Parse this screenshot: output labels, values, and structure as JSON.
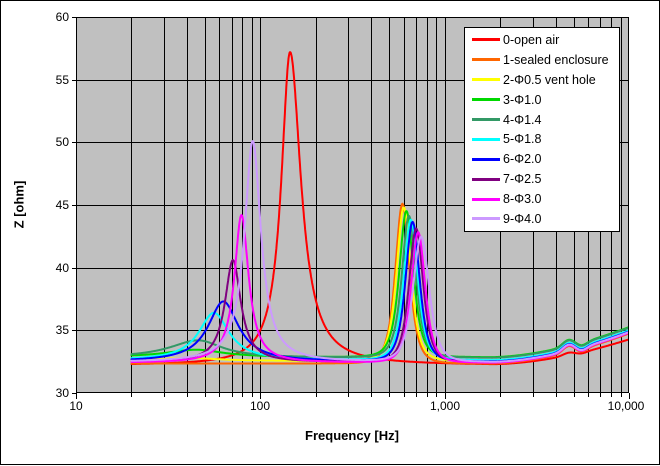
{
  "chart_data": {
    "type": "line",
    "title": "",
    "x_axis": {
      "label": "Frequency [Hz]",
      "scale": "log",
      "min": 10,
      "max": 10000,
      "decades": [
        10,
        100,
        1000,
        10000
      ],
      "tick_labels": [
        "10",
        "100",
        "1,000",
        "10,000"
      ]
    },
    "y_axis": {
      "label": "Z [ohm]",
      "min": 30,
      "max": 60,
      "step": 5,
      "tick_labels": [
        "60",
        "55",
        "50",
        "45",
        "40",
        "35",
        "30"
      ]
    },
    "plot_background": "#c0c0c0",
    "gridline_color": "#000000",
    "legend_position": "top-right-inside",
    "curve_model_note": "curves sampled 20-10000 Hz; peaks = {f Hz, z ohm peak, wl/wr log-widths, p shape power}",
    "f_start": 20,
    "f_end": 10000,
    "hf_tail": {
      "start_f": 1800,
      "rise": 2.4,
      "exp": 1.7,
      "bump_logf": 3.672,
      "bump_h": 0.5,
      "bump_w": 0.045,
      "dip_logf": 3.745,
      "dip_h": -0.25,
      "dip_w": 0.04,
      "end_z_bundle": 34.9
    },
    "series": [
      {
        "name": "0-open air",
        "color": "#FF0000",
        "base": 32.2,
        "tail_scale": 0.85,
        "bump_scale": 0.4,
        "peaks": [
          {
            "f": 145,
            "z": 57.2,
            "wl": 0.0575,
            "wr": 0.0716,
            "p": 1
          }
        ]
      },
      {
        "name": "1-sealed enclosure",
        "color": "#FF6600",
        "base": 32.35,
        "tail_scale": 1,
        "bump_scale": 1,
        "peaks": [
          {
            "f": 590,
            "z": 45.1,
            "wl": 0.07,
            "wr": 0.07,
            "p": 2
          }
        ]
      },
      {
        "name": "2-Φ0.5 vent hole",
        "color": "#FFFF00",
        "base": 32.55,
        "tail_scale": 1,
        "bump_scale": 1,
        "peaks": [
          {
            "f": 40,
            "z": 32.8,
            "wl": 0.2,
            "wr": 0.2,
            "p": 1
          },
          {
            "f": 600,
            "z": 44.8,
            "wl": 0.07,
            "wr": 0.07,
            "p": 2
          }
        ]
      },
      {
        "name": "3-Φ1.0",
        "color": "#00D800",
        "base": 32.85,
        "tail_scale": 1,
        "bump_scale": 1,
        "peaks": [
          {
            "f": 45,
            "z": 33.45,
            "wl": 0.2,
            "wr": 0.18,
            "p": 1
          },
          {
            "f": 620,
            "z": 44.5,
            "wl": 0.07,
            "wr": 0.07,
            "p": 2
          }
        ]
      },
      {
        "name": "4-Φ1.4",
        "color": "#339966",
        "base": 32.8,
        "tail_scale": 1,
        "bump_scale": 1,
        "peaks": [
          {
            "f": 46,
            "z": 34.2,
            "wl": 0.19,
            "wr": 0.16,
            "p": 1
          },
          {
            "f": 640,
            "z": 44.1,
            "wl": 0.07,
            "wr": 0.07,
            "p": 2
          }
        ]
      },
      {
        "name": "5-Φ1.8",
        "color": "#00FFFF",
        "base": 32.6,
        "tail_scale": 1,
        "bump_scale": 1,
        "peaks": [
          {
            "f": 56,
            "z": 36.4,
            "wl": 0.1,
            "wr": 0.1,
            "p": 1
          },
          {
            "f": 655,
            "z": 43.8,
            "wl": 0.07,
            "wr": 0.07,
            "p": 2
          }
        ]
      },
      {
        "name": "6-Φ2.0",
        "color": "#0000FF",
        "base": 32.5,
        "tail_scale": 1,
        "bump_scale": 1,
        "peaks": [
          {
            "f": 63,
            "z": 37.3,
            "wl": 0.1,
            "wr": 0.1,
            "p": 1
          },
          {
            "f": 670,
            "z": 43.6,
            "wl": 0.07,
            "wr": 0.07,
            "p": 2
          }
        ]
      },
      {
        "name": "7-Φ2.5",
        "color": "#800080",
        "base": 32.45,
        "tail_scale": 1,
        "bump_scale": 1,
        "peaks": [
          {
            "f": 71,
            "z": 40.6,
            "wl": 0.052,
            "wr": 0.052,
            "p": 1
          },
          {
            "f": 700,
            "z": 43.1,
            "wl": 0.07,
            "wr": 0.07,
            "p": 2
          }
        ]
      },
      {
        "name": "8-Φ3.0",
        "color": "#FF00FF",
        "base": 32.4,
        "tail_scale": 1,
        "bump_scale": 1,
        "peaks": [
          {
            "f": 79,
            "z": 44.2,
            "wl": 0.046,
            "wr": 0.047,
            "p": 1
          },
          {
            "f": 718,
            "z": 42.8,
            "wl": 0.07,
            "wr": 0.07,
            "p": 2
          }
        ]
      },
      {
        "name": "9-Φ4.0",
        "color": "#CC99FF",
        "base": 32.45,
        "tail_scale": 1,
        "bump_scale": 1,
        "peaks": [
          {
            "f": 91,
            "z": 50.1,
            "wl": 0.0544,
            "wr": 0.0538,
            "p": 1
          },
          {
            "f": 745,
            "z": 42.4,
            "wl": 0.08,
            "wr": 0.08,
            "p": 2
          }
        ]
      }
    ]
  }
}
